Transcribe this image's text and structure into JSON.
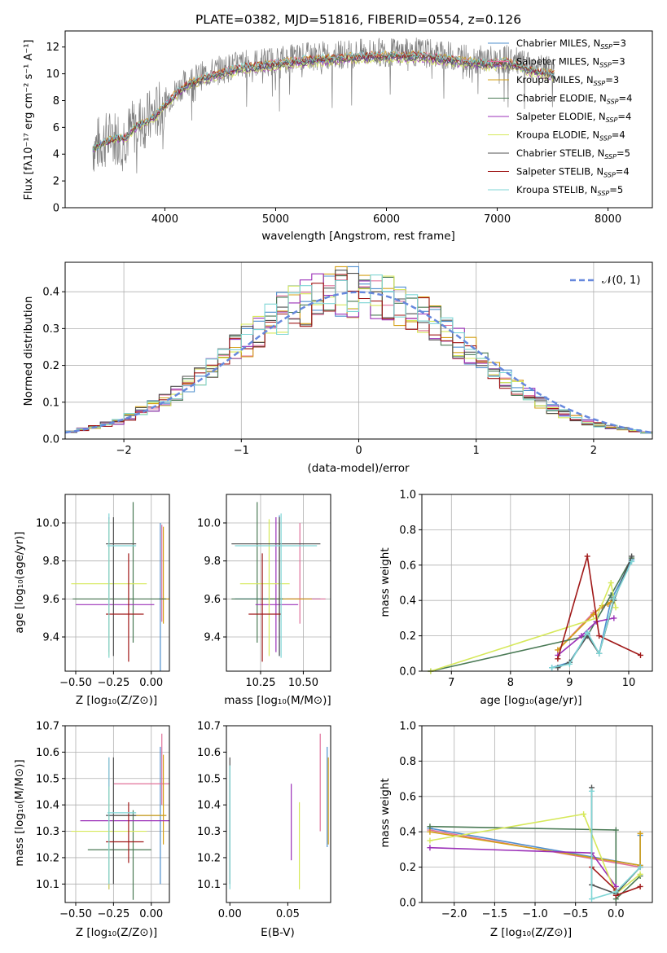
{
  "chart_data": [
    {
      "id": "spectrum",
      "type": "line",
      "title": "PLATE=0382, MJD=51816, FIBERID=0554, z=0.126",
      "xlabel": "wavelength [Angstrom, rest frame]",
      "ylabel": "Flux [fλ10⁻¹⁷ erg cm⁻² s⁻¹ A⁻¹]",
      "xlim": [
        3100,
        8400
      ],
      "ylim": [
        0,
        13.2
      ],
      "xticks": [
        "4000",
        "5000",
        "6000",
        "7000",
        "8000"
      ],
      "yticks": [
        "0",
        "2",
        "4",
        "6",
        "8",
        "10",
        "12"
      ],
      "grid": false,
      "legend_position": "right",
      "data_color": "#808080",
      "data_x": [
        3350,
        3450,
        3550,
        3650,
        3750,
        3850,
        3950,
        4050,
        4150,
        4250,
        4350,
        4500,
        4700,
        4900,
        5100,
        5300,
        5500,
        5700,
        5900,
        6100,
        6300,
        6500,
        6700,
        6900,
        7100,
        7300,
        7500
      ],
      "data_y": [
        4.5,
        5.0,
        5.3,
        5.4,
        6.3,
        6.6,
        7.3,
        8.3,
        9.1,
        9.6,
        9.9,
        10.3,
        10.7,
        10.9,
        11.1,
        11.3,
        11.4,
        11.5,
        11.6,
        11.6,
        11.6,
        11.4,
        11.2,
        11.0,
        11.1,
        10.5,
        10.2
      ],
      "series": [
        {
          "name": "Chabrier MILES, N$_{SSP}$=3",
          "label": "Chabrier MILES, N",
          "sub": "SSP",
          "tail": "=3",
          "color": "#4f8fce"
        },
        {
          "name": "Salpeter MILES, N$_{SSP}$=3",
          "label": "Salpeter MILES, N",
          "sub": "SSP",
          "tail": "=3",
          "color": "#e0709a"
        },
        {
          "name": "Kroupa MILES, N$_{SSP}$=3",
          "label": "Kroupa MILES, N",
          "sub": "SSP",
          "tail": "=3",
          "color": "#d4a017"
        },
        {
          "name": "Chabrier ELODIE, N$_{SSP}$=4",
          "label": "Chabrier ELODIE, N",
          "sub": "SSP",
          "tail": "=4",
          "color": "#4a7a55"
        },
        {
          "name": "Salpeter ELODIE, N$_{SSP}$=4",
          "label": "Salpeter ELODIE, N",
          "sub": "SSP",
          "tail": "=4",
          "color": "#9b30b8"
        },
        {
          "name": "Kroupa ELODIE, N$_{SSP}$=4",
          "label": "Kroupa ELODIE, N",
          "sub": "SSP",
          "tail": "=4",
          "color": "#d6e85a"
        },
        {
          "name": "Chabrier STELIB, N$_{SSP}$=5",
          "label": "Chabrier STELIB, N",
          "sub": "SSP",
          "tail": "=5",
          "color": "#505050"
        },
        {
          "name": "Salpeter STELIB, N$_{SSP}$=4",
          "label": "Salpeter STELIB, N",
          "sub": "SSP",
          "tail": "=4",
          "color": "#a01818"
        },
        {
          "name": "Kroupa STELIB, N$_{SSP}$=5",
          "label": "Kroupa STELIB, N",
          "sub": "SSP",
          "tail": "=5",
          "color": "#7fd6d6"
        }
      ]
    },
    {
      "id": "residuals",
      "type": "line",
      "xlabel": "(data-model)/error",
      "ylabel": "Normed distribution",
      "xlim": [
        -2.5,
        2.5
      ],
      "ylim": [
        0,
        0.48
      ],
      "xticks": [
        "−2",
        "−1",
        "0",
        "1",
        "2"
      ],
      "yticks": [
        "0.0",
        "0.1",
        "0.2",
        "0.3",
        "0.4"
      ],
      "grid": true,
      "legend_position": "top-right",
      "legend": "𝒩(0, 1)",
      "gauss_color": "#6688dd",
      "bin_width": 0.1,
      "x": [
        -2.45,
        -2.35,
        -2.25,
        -2.15,
        -2.05,
        -1.95,
        -1.85,
        -1.75,
        -1.65,
        -1.55,
        -1.45,
        -1.35,
        -1.25,
        -1.15,
        -1.05,
        -0.95,
        -0.85,
        -0.75,
        -0.65,
        -0.55,
        -0.45,
        -0.35,
        -0.25,
        -0.15,
        -0.05,
        0.05,
        0.15,
        0.25,
        0.35,
        0.45,
        0.55,
        0.65,
        0.75,
        0.85,
        0.95,
        1.05,
        1.15,
        1.25,
        1.35,
        1.45,
        1.55,
        1.65,
        1.75,
        1.85,
        1.95,
        2.05,
        2.15,
        2.25,
        2.35,
        2.45
      ],
      "shape": [
        0.02,
        0.026,
        0.033,
        0.04,
        0.048,
        0.06,
        0.075,
        0.09,
        0.105,
        0.125,
        0.15,
        0.17,
        0.195,
        0.22,
        0.245,
        0.27,
        0.3,
        0.32,
        0.34,
        0.355,
        0.37,
        0.385,
        0.395,
        0.4,
        0.4,
        0.398,
        0.39,
        0.38,
        0.365,
        0.35,
        0.33,
        0.31,
        0.285,
        0.26,
        0.235,
        0.21,
        0.185,
        0.16,
        0.14,
        0.12,
        0.1,
        0.082,
        0.068,
        0.056,
        0.046,
        0.038,
        0.032,
        0.027,
        0.022,
        0.018
      ]
    },
    {
      "id": "age_vs_Z",
      "type": "scatter",
      "xlabel": "Z [log₁₀(Z/Z⊙)]",
      "ylabel": "age  [log₁₀(age/yr)]",
      "xlim": [
        -0.57,
        0.12
      ],
      "ylim": [
        9.22,
        10.15
      ],
      "xticks": [
        "−0.50",
        "−0.25",
        "0.00"
      ],
      "yticks": [
        "9.4",
        "9.6",
        "9.8",
        "10.0"
      ],
      "grid": true,
      "points": [
        {
          "x": 0.06,
          "y": 9.6,
          "ex": [
            0.05,
            0.07
          ],
          "ey": [
            9.22,
            10.0
          ],
          "color": "#4f8fce"
        },
        {
          "x": 0.07,
          "y": 9.6,
          "ex": [
            0.06,
            0.09
          ],
          "ey": [
            9.48,
            9.99
          ],
          "color": "#e0709a"
        },
        {
          "x": 0.08,
          "y": 9.6,
          "ex": [
            0.07,
            0.12
          ],
          "ey": [
            9.47,
            9.98
          ],
          "color": "#d4a017"
        },
        {
          "x": -0.12,
          "y": 9.6,
          "ex": [
            -0.52,
            0.1
          ],
          "ey": [
            9.37,
            10.11
          ],
          "color": "#4a7a55"
        },
        {
          "x": -0.28,
          "y": 9.57,
          "ex": [
            -0.5,
            0.02
          ],
          "ey": [
            9.32,
            10.03
          ],
          "color": "#9b30b8"
        },
        {
          "x": -0.28,
          "y": 9.68,
          "ex": [
            -0.53,
            -0.03
          ],
          "ey": [
            9.3,
            10.02
          ],
          "color": "#d6e85a"
        },
        {
          "x": -0.25,
          "y": 9.89,
          "ex": [
            -0.3,
            -0.1
          ],
          "ey": [
            9.3,
            10.03
          ],
          "color": "#505050"
        },
        {
          "x": -0.15,
          "y": 9.52,
          "ex": [
            -0.3,
            -0.05
          ],
          "ey": [
            9.27,
            9.84
          ],
          "color": "#a01818"
        },
        {
          "x": -0.28,
          "y": 9.88,
          "ex": [
            -0.29,
            -0.1
          ],
          "ey": [
            9.29,
            10.05
          ],
          "color": "#7fd6d6"
        }
      ]
    },
    {
      "id": "age_vs_mass",
      "type": "scatter",
      "xlabel": "mass [log₁₀(M/M⊙)]",
      "ylabel": "",
      "xlim": [
        10.05,
        10.66
      ],
      "ylim": [
        9.22,
        10.15
      ],
      "xticks": [
        "10.25",
        "10.50"
      ],
      "yticks": [
        "9.4",
        "9.6",
        "9.8",
        "10.0"
      ],
      "grid": true,
      "points": [
        {
          "x": 10.36,
          "y": 9.6,
          "ex": [
            10.1,
            10.6
          ],
          "ey": [
            9.3,
            10.04
          ],
          "color": "#4f8fce"
        },
        {
          "x": 10.48,
          "y": 9.6,
          "ex": [
            10.4,
            10.63
          ],
          "ey": [
            9.47,
            10.0
          ],
          "color": "#e0709a"
        },
        {
          "x": 10.36,
          "y": 9.6,
          "ex": [
            10.3,
            10.55
          ],
          "ey": [
            9.48,
            10.0
          ],
          "color": "#d4a017"
        },
        {
          "x": 10.23,
          "y": 9.6,
          "ex": [
            10.08,
            10.38
          ],
          "ey": [
            9.37,
            10.11
          ],
          "color": "#4a7a55"
        },
        {
          "x": 10.34,
          "y": 9.57,
          "ex": [
            10.22,
            10.47
          ],
          "ey": [
            9.32,
            10.03
          ],
          "color": "#9b30b8"
        },
        {
          "x": 10.3,
          "y": 9.68,
          "ex": [
            10.13,
            10.42
          ],
          "ey": [
            9.3,
            10.02
          ],
          "color": "#d6e85a"
        },
        {
          "x": 10.36,
          "y": 9.89,
          "ex": [
            10.08,
            10.6
          ],
          "ey": [
            9.3,
            10.03
          ],
          "color": "#505050"
        },
        {
          "x": 10.26,
          "y": 9.52,
          "ex": [
            10.18,
            10.37
          ],
          "ey": [
            9.27,
            9.84
          ],
          "color": "#a01818"
        },
        {
          "x": 10.37,
          "y": 9.88,
          "ex": [
            10.1,
            10.58
          ],
          "ey": [
            9.29,
            10.05
          ],
          "color": "#7fd6d6"
        }
      ]
    },
    {
      "id": "weight_vs_age",
      "type": "line",
      "xlabel": "age  [log₁₀(age/yr)]",
      "ylabel": "mass weight",
      "xlim": [
        6.5,
        10.4
      ],
      "ylim": [
        0,
        1.0
      ],
      "xticks": [
        "7",
        "8",
        "9",
        "10"
      ],
      "yticks": [
        "0.0",
        "0.2",
        "0.4",
        "0.6",
        "0.8",
        "1.0"
      ],
      "grid": true,
      "series": [
        {
          "color": "#4f8fce",
          "x": [
            8.7,
            9.0,
            9.3,
            9.5,
            9.7,
            10.05
          ],
          "y": [
            0.02,
            0.05,
            0.21,
            0.1,
            0.4,
            0.63
          ]
        },
        {
          "color": "#e0709a",
          "x": [
            8.8,
            9.4,
            9.55,
            9.65,
            9.72
          ],
          "y": [
            0.12,
            0.33,
            0.36,
            0.38,
            0.4
          ]
        },
        {
          "color": "#d4a017",
          "x": [
            8.8,
            9.4,
            9.55,
            9.65,
            9.72
          ],
          "y": [
            0.12,
            0.32,
            0.37,
            0.38,
            0.4
          ]
        },
        {
          "color": "#4a7a55",
          "x": [
            6.65,
            9.3,
            9.7,
            10.05
          ],
          "y": [
            0.0,
            0.2,
            0.43,
            0.64
          ]
        },
        {
          "color": "#9b30b8",
          "x": [
            8.8,
            9.2,
            9.45,
            9.75
          ],
          "y": [
            0.09,
            0.2,
            0.28,
            0.3
          ]
        },
        {
          "color": "#d6e85a",
          "x": [
            6.65,
            9.45,
            9.7,
            9.78
          ],
          "y": [
            0.0,
            0.3,
            0.5,
            0.36
          ]
        },
        {
          "color": "#505050",
          "x": [
            8.8,
            9.0,
            9.3,
            9.5,
            9.75,
            10.05
          ],
          "y": [
            0.02,
            0.05,
            0.2,
            0.1,
            0.4,
            0.65
          ]
        },
        {
          "color": "#a01818",
          "x": [
            8.8,
            9.3,
            9.5,
            10.2
          ],
          "y": [
            0.07,
            0.65,
            0.2,
            0.09
          ]
        },
        {
          "color": "#7fd6d6",
          "x": [
            8.7,
            9.0,
            9.3,
            9.5,
            9.75,
            10.05
          ],
          "y": [
            0.02,
            0.04,
            0.22,
            0.1,
            0.41,
            0.62
          ]
        }
      ]
    },
    {
      "id": "mass_vs_Z",
      "type": "scatter",
      "xlabel": "Z [log₁₀(Z/Z⊙)]",
      "ylabel": "mass [log₁₀(M/M⊙)]",
      "xlim": [
        -0.57,
        0.12
      ],
      "ylim": [
        10.03,
        10.7
      ],
      "xticks": [
        "−0.50",
        "−0.25",
        "0.00"
      ],
      "yticks": [
        "10.1",
        "10.2",
        "10.3",
        "10.4",
        "10.5",
        "10.6",
        "10.7"
      ],
      "grid": true,
      "points": [
        {
          "x": 0.06,
          "y": 10.36,
          "ex": [
            -0.28,
            0.1
          ],
          "ey": [
            10.1,
            10.62
          ],
          "color": "#4f8fce"
        },
        {
          "x": 0.07,
          "y": 10.48,
          "ex": [
            -0.25,
            0.12
          ],
          "ey": [
            10.4,
            10.67
          ],
          "color": "#e0709a"
        },
        {
          "x": 0.08,
          "y": 10.36,
          "ex": [
            -0.25,
            0.1
          ],
          "ey": [
            10.25,
            10.59
          ],
          "color": "#d4a017"
        },
        {
          "x": -0.12,
          "y": 10.23,
          "ex": [
            -0.42,
            0.0
          ],
          "ey": [
            10.04,
            10.38
          ],
          "color": "#4a7a55"
        },
        {
          "x": -0.28,
          "y": 10.34,
          "ex": [
            -0.47,
            0.12
          ],
          "ey": [
            10.08,
            10.58
          ],
          "color": "#9b30b8"
        },
        {
          "x": -0.28,
          "y": 10.3,
          "ex": [
            -0.53,
            -0.03
          ],
          "ey": [
            10.08,
            10.47
          ],
          "color": "#d6e85a"
        },
        {
          "x": -0.25,
          "y": 10.36,
          "ex": [
            -0.3,
            -0.1
          ],
          "ey": [
            10.1,
            10.58
          ],
          "color": "#505050"
        },
        {
          "x": -0.15,
          "y": 10.26,
          "ex": [
            -0.3,
            -0.05
          ],
          "ey": [
            10.18,
            10.41
          ],
          "color": "#a01818"
        },
        {
          "x": -0.28,
          "y": 10.37,
          "ex": [
            -0.29,
            -0.1
          ],
          "ey": [
            10.1,
            10.58
          ],
          "color": "#7fd6d6"
        }
      ]
    },
    {
      "id": "mass_vs_EBV",
      "type": "scatter",
      "xlabel": "E(B-V)",
      "ylabel": "",
      "xlim": [
        -0.003,
        0.087
      ],
      "ylim": [
        10.03,
        10.7
      ],
      "xticks": [
        "0.00",
        "0.05"
      ],
      "yticks": [
        "10.1",
        "10.2",
        "10.3",
        "10.4",
        "10.5",
        "10.6",
        "10.7"
      ],
      "grid": false,
      "points": [
        {
          "x": 0.0,
          "y": 10.36,
          "ey": [
            10.1,
            10.58
          ],
          "color": "#505050"
        },
        {
          "x": 0.0,
          "y": 10.35,
          "ey": [
            10.08,
            10.55
          ],
          "color": "#7fd6d6"
        },
        {
          "x": 0.053,
          "y": 10.34,
          "ey": [
            10.19,
            10.48
          ],
          "color": "#9b30b8"
        },
        {
          "x": 0.06,
          "y": 10.3,
          "ey": [
            10.08,
            10.41
          ],
          "color": "#d6e85a"
        },
        {
          "x": 0.078,
          "y": 10.48,
          "ey": [
            10.3,
            10.67
          ],
          "color": "#e0709a"
        },
        {
          "x": 0.084,
          "y": 10.36,
          "ey": [
            10.24,
            10.62
          ],
          "color": "#4f8fce"
        },
        {
          "x": 0.085,
          "y": 10.4,
          "ey": [
            10.25,
            10.58
          ],
          "color": "#d4a017"
        }
      ]
    },
    {
      "id": "weight_vs_Z",
      "type": "line",
      "xlabel": "Z [log₁₀(Z/Z⊙)]",
      "ylabel": "mass weight",
      "xlim": [
        -2.4,
        0.45
      ],
      "ylim": [
        0,
        1.0
      ],
      "xticks": [
        "−2.0",
        "−1.5",
        "−1.0",
        "−0.5",
        "0.0"
      ],
      "yticks": [
        "0.0",
        "0.2",
        "0.4",
        "0.6",
        "0.8",
        "1.0"
      ],
      "grid": true,
      "series": [
        {
          "color": "#4f8fce",
          "x": [
            -2.3,
            0.3,
            0.3
          ],
          "y": [
            0.42,
            0.21,
            0.38
          ]
        },
        {
          "color": "#e0709a",
          "x": [
            -2.3,
            0.3
          ],
          "y": [
            0.41,
            0.2
          ]
        },
        {
          "color": "#d4a017",
          "x": [
            -2.3,
            0.3,
            0.3
          ],
          "y": [
            0.4,
            0.21,
            0.39
          ]
        },
        {
          "color": "#4a7a55",
          "x": [
            -2.3,
            0.0,
            0.0,
            0.3
          ],
          "y": [
            0.43,
            0.41,
            0.02,
            0.15
          ]
        },
        {
          "color": "#9b30b8",
          "x": [
            -2.3,
            -0.3,
            0.0,
            0.0
          ],
          "y": [
            0.31,
            0.28,
            0.09,
            0.05
          ]
        },
        {
          "color": "#d6e85a",
          "x": [
            -2.3,
            -0.4,
            0.0,
            0.3
          ],
          "y": [
            0.35,
            0.5,
            0.05,
            0.16
          ]
        },
        {
          "color": "#505050",
          "x": [
            -0.3,
            -0.3,
            0.0,
            0.3
          ],
          "y": [
            0.65,
            0.1,
            0.05,
            0.2
          ]
        },
        {
          "color": "#a01818",
          "x": [
            -0.3,
            0.0,
            0.0,
            0.3
          ],
          "y": [
            0.2,
            0.07,
            0.04,
            0.09
          ]
        },
        {
          "color": "#7fd6d6",
          "x": [
            -0.3,
            -0.3,
            0.0,
            0.3
          ],
          "y": [
            0.63,
            0.02,
            0.06,
            0.2
          ]
        }
      ]
    }
  ]
}
